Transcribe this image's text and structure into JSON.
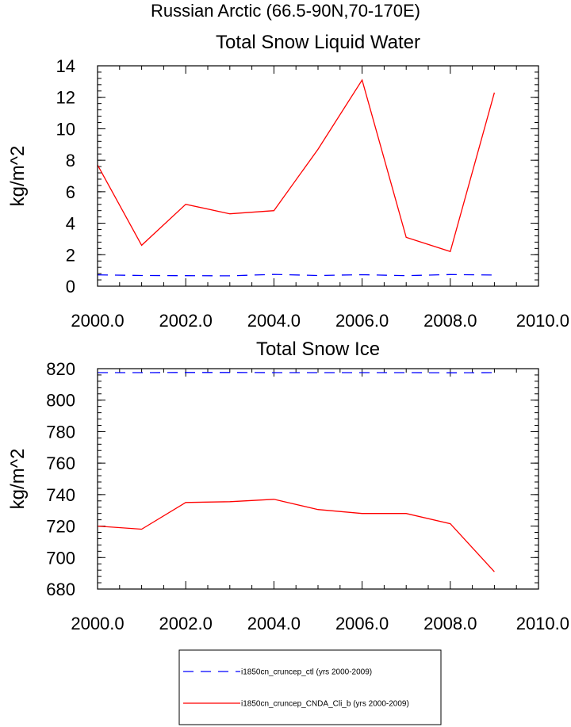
{
  "page_title": "Russian Arctic (66.5-90N,70-170E)",
  "legend": [
    {
      "label": "i1850cn_cruncep_ctl (yrs 2000-2009)",
      "color": "#0000ff",
      "dash": true
    },
    {
      "label": "i1850cn_cruncep_CNDA_Cli_b (yrs 2000-2009)",
      "color": "#ff0000",
      "dash": false
    }
  ],
  "chart_data": [
    {
      "type": "line",
      "title": "Total Snow Liquid Water",
      "xlabel": "",
      "ylabel": "kg/m^2",
      "xlim": [
        2000,
        2010
      ],
      "ylim": [
        0,
        14
      ],
      "xticks": [
        2000,
        2002,
        2004,
        2006,
        2008,
        2010
      ],
      "xtick_labels": [
        "2000.0",
        "2002.0",
        "2004.0",
        "2006.0",
        "2008.0",
        "2010.0"
      ],
      "yticks": [
        0,
        2,
        4,
        6,
        8,
        10,
        12,
        14
      ],
      "ytick_labels": [
        "0",
        "2",
        "4",
        "6",
        "8",
        "10",
        "12",
        "14"
      ],
      "x": [
        2000,
        2001,
        2002,
        2003,
        2004,
        2005,
        2006,
        2007,
        2008,
        2009
      ],
      "series": [
        {
          "legend_index": 0,
          "color": "#0000ff",
          "dash": true,
          "values": [
            0.72,
            0.68,
            0.67,
            0.66,
            0.75,
            0.68,
            0.73,
            0.67,
            0.74,
            0.71
          ]
        },
        {
          "legend_index": 1,
          "color": "#ff0000",
          "dash": false,
          "values": [
            7.7,
            2.6,
            5.2,
            4.6,
            4.8,
            8.7,
            13.1,
            3.1,
            2.2,
            12.3
          ]
        }
      ]
    },
    {
      "type": "line",
      "title": "Total Snow Ice",
      "xlabel": "",
      "ylabel": "kg/m^2",
      "xlim": [
        2000,
        2010
      ],
      "ylim": [
        680,
        820
      ],
      "xticks": [
        2000,
        2002,
        2004,
        2006,
        2008,
        2010
      ],
      "xtick_labels": [
        "2000.0",
        "2002.0",
        "2004.0",
        "2006.0",
        "2008.0",
        "2010.0"
      ],
      "yticks": [
        680,
        700,
        720,
        740,
        760,
        780,
        800,
        820
      ],
      "ytick_labels": [
        "680",
        "700",
        "720",
        "740",
        "760",
        "780",
        "800",
        "820"
      ],
      "x": [
        2000,
        2001,
        2002,
        2003,
        2004,
        2005,
        2006,
        2007,
        2008,
        2009
      ],
      "series": [
        {
          "legend_index": 0,
          "color": "#0000ff",
          "dash": true,
          "values": [
            817.5,
            817.5,
            817.6,
            817.6,
            817.5,
            817.5,
            817.5,
            817.5,
            817.4,
            817.5
          ]
        },
        {
          "legend_index": 1,
          "color": "#ff0000",
          "dash": false,
          "values": [
            720,
            718,
            735,
            735.5,
            737,
            730.5,
            728,
            728,
            721.5,
            691
          ]
        }
      ]
    }
  ]
}
